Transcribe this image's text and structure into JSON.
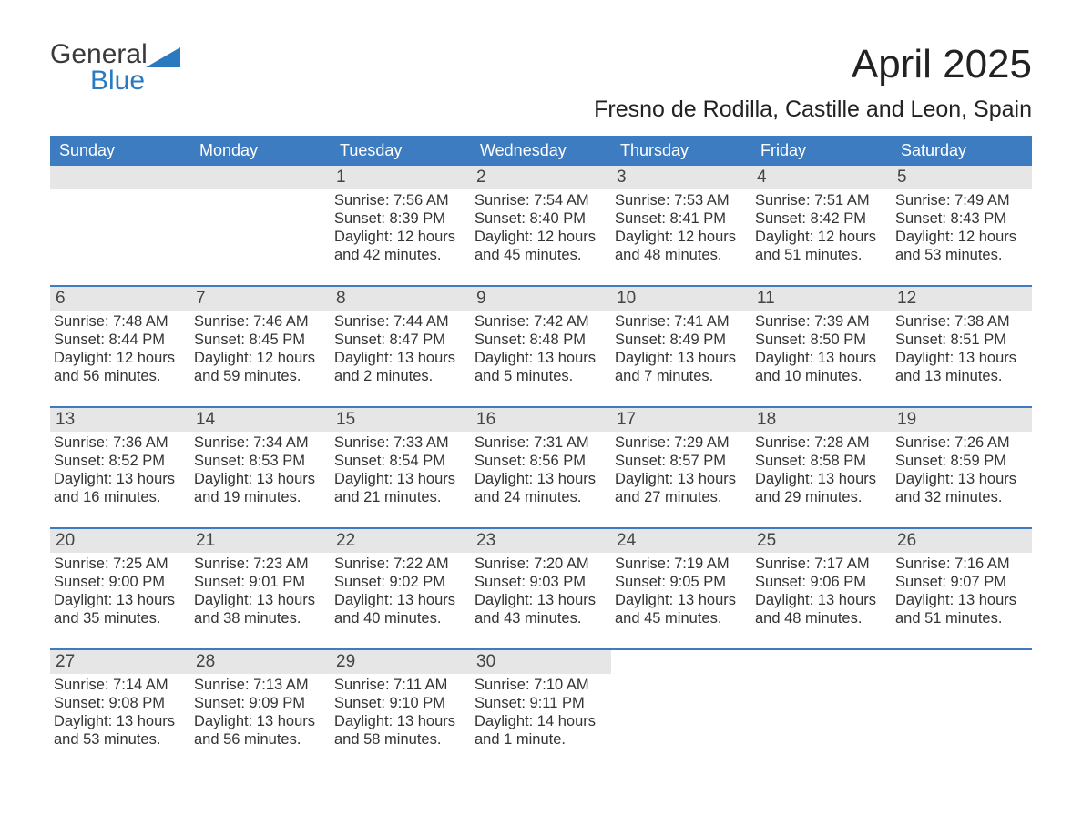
{
  "logo": {
    "line1": "General",
    "line2": "Blue"
  },
  "title": "April 2025",
  "location": "Fresno de Rodilla, Castille and Leon, Spain",
  "day_headers": [
    "Sunday",
    "Monday",
    "Tuesday",
    "Wednesday",
    "Thursday",
    "Friday",
    "Saturday"
  ],
  "colors": {
    "header_blue": "#3d7cc0",
    "daynum_bg": "#e6e6e6",
    "text": "#333333",
    "logo_dark": "#3a3a3a",
    "logo_blue": "#2b7ac0"
  },
  "weeks": [
    [
      {
        "empty": true
      },
      {
        "empty": true
      },
      {
        "num": "1",
        "sunrise": "Sunrise: 7:56 AM",
        "sunset": "Sunset: 8:39 PM",
        "daylight": "Daylight: 12 hours and 42 minutes."
      },
      {
        "num": "2",
        "sunrise": "Sunrise: 7:54 AM",
        "sunset": "Sunset: 8:40 PM",
        "daylight": "Daylight: 12 hours and 45 minutes."
      },
      {
        "num": "3",
        "sunrise": "Sunrise: 7:53 AM",
        "sunset": "Sunset: 8:41 PM",
        "daylight": "Daylight: 12 hours and 48 minutes."
      },
      {
        "num": "4",
        "sunrise": "Sunrise: 7:51 AM",
        "sunset": "Sunset: 8:42 PM",
        "daylight": "Daylight: 12 hours and 51 minutes."
      },
      {
        "num": "5",
        "sunrise": "Sunrise: 7:49 AM",
        "sunset": "Sunset: 8:43 PM",
        "daylight": "Daylight: 12 hours and 53 minutes."
      }
    ],
    [
      {
        "num": "6",
        "sunrise": "Sunrise: 7:48 AM",
        "sunset": "Sunset: 8:44 PM",
        "daylight": "Daylight: 12 hours and 56 minutes."
      },
      {
        "num": "7",
        "sunrise": "Sunrise: 7:46 AM",
        "sunset": "Sunset: 8:45 PM",
        "daylight": "Daylight: 12 hours and 59 minutes."
      },
      {
        "num": "8",
        "sunrise": "Sunrise: 7:44 AM",
        "sunset": "Sunset: 8:47 PM",
        "daylight": "Daylight: 13 hours and 2 minutes."
      },
      {
        "num": "9",
        "sunrise": "Sunrise: 7:42 AM",
        "sunset": "Sunset: 8:48 PM",
        "daylight": "Daylight: 13 hours and 5 minutes."
      },
      {
        "num": "10",
        "sunrise": "Sunrise: 7:41 AM",
        "sunset": "Sunset: 8:49 PM",
        "daylight": "Daylight: 13 hours and 7 minutes."
      },
      {
        "num": "11",
        "sunrise": "Sunrise: 7:39 AM",
        "sunset": "Sunset: 8:50 PM",
        "daylight": "Daylight: 13 hours and 10 minutes."
      },
      {
        "num": "12",
        "sunrise": "Sunrise: 7:38 AM",
        "sunset": "Sunset: 8:51 PM",
        "daylight": "Daylight: 13 hours and 13 minutes."
      }
    ],
    [
      {
        "num": "13",
        "sunrise": "Sunrise: 7:36 AM",
        "sunset": "Sunset: 8:52 PM",
        "daylight": "Daylight: 13 hours and 16 minutes."
      },
      {
        "num": "14",
        "sunrise": "Sunrise: 7:34 AM",
        "sunset": "Sunset: 8:53 PM",
        "daylight": "Daylight: 13 hours and 19 minutes."
      },
      {
        "num": "15",
        "sunrise": "Sunrise: 7:33 AM",
        "sunset": "Sunset: 8:54 PM",
        "daylight": "Daylight: 13 hours and 21 minutes."
      },
      {
        "num": "16",
        "sunrise": "Sunrise: 7:31 AM",
        "sunset": "Sunset: 8:56 PM",
        "daylight": "Daylight: 13 hours and 24 minutes."
      },
      {
        "num": "17",
        "sunrise": "Sunrise: 7:29 AM",
        "sunset": "Sunset: 8:57 PM",
        "daylight": "Daylight: 13 hours and 27 minutes."
      },
      {
        "num": "18",
        "sunrise": "Sunrise: 7:28 AM",
        "sunset": "Sunset: 8:58 PM",
        "daylight": "Daylight: 13 hours and 29 minutes."
      },
      {
        "num": "19",
        "sunrise": "Sunrise: 7:26 AM",
        "sunset": "Sunset: 8:59 PM",
        "daylight": "Daylight: 13 hours and 32 minutes."
      }
    ],
    [
      {
        "num": "20",
        "sunrise": "Sunrise: 7:25 AM",
        "sunset": "Sunset: 9:00 PM",
        "daylight": "Daylight: 13 hours and 35 minutes."
      },
      {
        "num": "21",
        "sunrise": "Sunrise: 7:23 AM",
        "sunset": "Sunset: 9:01 PM",
        "daylight": "Daylight: 13 hours and 38 minutes."
      },
      {
        "num": "22",
        "sunrise": "Sunrise: 7:22 AM",
        "sunset": "Sunset: 9:02 PM",
        "daylight": "Daylight: 13 hours and 40 minutes."
      },
      {
        "num": "23",
        "sunrise": "Sunrise: 7:20 AM",
        "sunset": "Sunset: 9:03 PM",
        "daylight": "Daylight: 13 hours and 43 minutes."
      },
      {
        "num": "24",
        "sunrise": "Sunrise: 7:19 AM",
        "sunset": "Sunset: 9:05 PM",
        "daylight": "Daylight: 13 hours and 45 minutes."
      },
      {
        "num": "25",
        "sunrise": "Sunrise: 7:17 AM",
        "sunset": "Sunset: 9:06 PM",
        "daylight": "Daylight: 13 hours and 48 minutes."
      },
      {
        "num": "26",
        "sunrise": "Sunrise: 7:16 AM",
        "sunset": "Sunset: 9:07 PM",
        "daylight": "Daylight: 13 hours and 51 minutes."
      }
    ],
    [
      {
        "num": "27",
        "sunrise": "Sunrise: 7:14 AM",
        "sunset": "Sunset: 9:08 PM",
        "daylight": "Daylight: 13 hours and 53 minutes."
      },
      {
        "num": "28",
        "sunrise": "Sunrise: 7:13 AM",
        "sunset": "Sunset: 9:09 PM",
        "daylight": "Daylight: 13 hours and 56 minutes."
      },
      {
        "num": "29",
        "sunrise": "Sunrise: 7:11 AM",
        "sunset": "Sunset: 9:10 PM",
        "daylight": "Daylight: 13 hours and 58 minutes."
      },
      {
        "num": "30",
        "sunrise": "Sunrise: 7:10 AM",
        "sunset": "Sunset: 9:11 PM",
        "daylight": "Daylight: 14 hours and 1 minute."
      },
      {
        "blank": true
      },
      {
        "blank": true
      },
      {
        "blank": true
      }
    ]
  ]
}
